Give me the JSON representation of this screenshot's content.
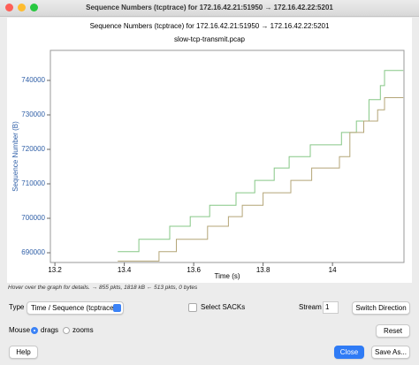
{
  "window": {
    "title": "Sequence Numbers (tcptrace) for 172.16.42.21:51950 → 172.16.42.22:5201"
  },
  "chart_data": {
    "type": "line",
    "title": "Sequence Numbers (tcptrace) for 172.16.42.21:51950 → 172.16.42.22:5201",
    "subtitle": "slow-tcp-transmit.pcap",
    "xlabel": "Time (s)",
    "ylabel": "Sequence Number (B)",
    "xlim": [
      13.187,
      14.206
    ],
    "ylim": [
      687180,
      748720
    ],
    "xticks": [
      13.2,
      13.4,
      13.6,
      13.8,
      14
    ],
    "yticks": [
      690000,
      700000,
      710000,
      720000,
      730000,
      740000
    ],
    "series": [
      {
        "color": "#86c786",
        "x": [
          13.381,
          13.442,
          13.442,
          13.531,
          13.531,
          13.59,
          13.59,
          13.646,
          13.646,
          13.722,
          13.722,
          13.776,
          13.776,
          13.832,
          13.832,
          13.875,
          13.875,
          13.936,
          13.936,
          14.026,
          14.026,
          14.069,
          14.069,
          14.105,
          14.105,
          14.138,
          14.138,
          14.15,
          14.15,
          14.204
        ],
        "values": [
          690300,
          690300,
          693900,
          693900,
          697700,
          697700,
          700500,
          700500,
          703800,
          703800,
          707400,
          707400,
          711000,
          711000,
          714600,
          714600,
          717900,
          717900,
          721300,
          721300,
          724900,
          724900,
          728200,
          728200,
          734400,
          734400,
          738500,
          738500,
          742900,
          742900
        ]
      },
      {
        "color": "#b4a577",
        "x": [
          13.381,
          13.5,
          13.5,
          13.55,
          13.55,
          13.64,
          13.64,
          13.7,
          13.7,
          13.74,
          13.74,
          13.8,
          13.8,
          13.88,
          13.88,
          13.94,
          13.94,
          14.02,
          14.02,
          14.05,
          14.05,
          14.09,
          14.09,
          14.13,
          14.13,
          14.15,
          14.15,
          14.204
        ],
        "values": [
          687600,
          687600,
          690300,
          690300,
          693900,
          693900,
          697700,
          697700,
          700500,
          700500,
          703800,
          703800,
          707400,
          707400,
          711000,
          711000,
          714600,
          714600,
          717900,
          717900,
          724900,
          724900,
          728200,
          728200,
          731500,
          731500,
          735000,
          735000
        ]
      }
    ]
  },
  "hint": "Hover over the graph for details. → 855 pkts, 1818 kB ← 513 pkts, 0 bytes",
  "controls": {
    "type_label": "Type",
    "type_value": "Time / Sequence (tcptrace)",
    "sacks": "Select SACKs",
    "stream_label": "Stream",
    "stream_value": "1",
    "switch": "Switch Direction",
    "mouse_label": "Mouse",
    "drags": "drags",
    "zooms": "zooms",
    "reset": "Reset"
  },
  "buttons": {
    "help": "Help",
    "close": "Close",
    "save_as": "Save As..."
  }
}
